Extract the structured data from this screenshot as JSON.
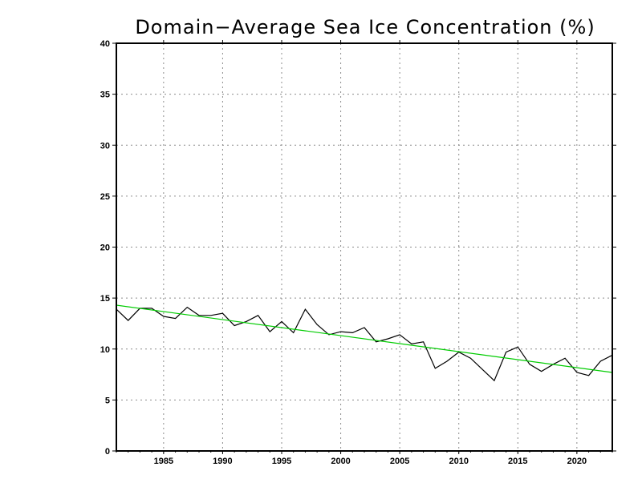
{
  "chart_data": {
    "type": "line",
    "title": "Domain−Average Sea Ice Concentration (%)",
    "xlabel": "",
    "ylabel": "",
    "xlim": [
      1981,
      2023
    ],
    "ylim": [
      0,
      40
    ],
    "x_ticks": [
      1985,
      1990,
      1995,
      2000,
      2005,
      2010,
      2015,
      2020
    ],
    "y_ticks": [
      0,
      5,
      10,
      15,
      20,
      25,
      30,
      35,
      40
    ],
    "x_tick_labels": [
      "1985",
      "1990",
      "1995",
      "2000",
      "2005",
      "2010",
      "2015",
      "2020"
    ],
    "y_tick_labels": [
      "0",
      "5",
      "10",
      "15",
      "20",
      "25",
      "30",
      "35",
      "40"
    ],
    "grid": true,
    "series": [
      {
        "color": "#000000",
        "x": [
          1981,
          1982,
          1983,
          1984,
          1985,
          1986,
          1987,
          1988,
          1989,
          1990,
          1991,
          1992,
          1993,
          1994,
          1995,
          1996,
          1997,
          1998,
          1999,
          2000,
          2001,
          2002,
          2003,
          2004,
          2005,
          2006,
          2007,
          2008,
          2009,
          2010,
          2011,
          2012,
          2013,
          2014,
          2015,
          2016,
          2017,
          2018,
          2019,
          2020,
          2021,
          2022,
          2023
        ],
        "values": [
          13.9,
          12.8,
          14.0,
          14.0,
          13.2,
          13.0,
          14.1,
          13.3,
          13.3,
          13.5,
          12.3,
          12.7,
          13.3,
          11.7,
          12.7,
          11.6,
          13.9,
          12.4,
          11.4,
          11.7,
          11.6,
          12.1,
          10.7,
          11.0,
          11.4,
          10.5,
          10.7,
          8.1,
          8.8,
          9.7,
          9.1,
          8.0,
          6.9,
          9.7,
          10.2,
          8.5,
          7.8,
          8.5,
          9.1,
          7.7,
          7.4,
          8.8,
          9.4
        ]
      },
      {
        "color": "#00cc00",
        "x": [
          1981,
          2023
        ],
        "values": [
          14.3,
          7.7
        ]
      }
    ]
  }
}
